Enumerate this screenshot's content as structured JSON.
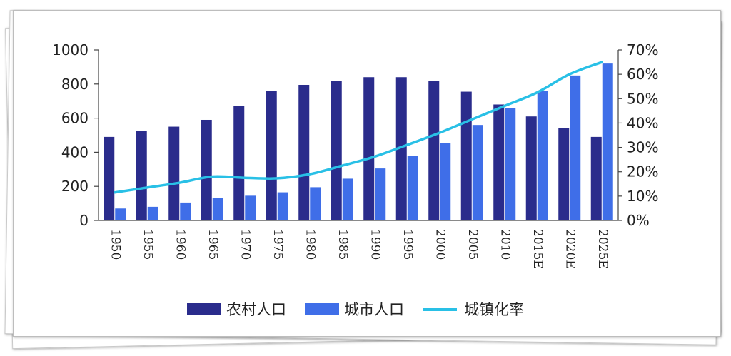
{
  "chart_data": {
    "type": "bar+line",
    "categories": [
      "1950",
      "1955",
      "1960",
      "1965",
      "1970",
      "1975",
      "1980",
      "1985",
      "1990",
      "1995",
      "2000",
      "2005",
      "2010",
      "2015E",
      "2020E",
      "2025E"
    ],
    "series": [
      {
        "name": "农村人口",
        "kind": "bar",
        "axis": "left",
        "color": "#2a2c8c",
        "values": [
          490,
          525,
          550,
          590,
          670,
          760,
          795,
          820,
          840,
          840,
          820,
          755,
          680,
          610,
          540,
          490
        ]
      },
      {
        "name": "城市人口",
        "kind": "bar",
        "axis": "left",
        "color": "#3f6ee8",
        "values": [
          70,
          80,
          105,
          130,
          145,
          165,
          195,
          245,
          305,
          380,
          455,
          560,
          660,
          760,
          850,
          920
        ]
      },
      {
        "name": "城镇化率",
        "kind": "line",
        "axis": "right",
        "color": "#29c0e6",
        "values": [
          0.115,
          0.135,
          0.155,
          0.18,
          0.175,
          0.173,
          0.19,
          0.225,
          0.262,
          0.31,
          0.36,
          0.415,
          0.47,
          0.525,
          0.6,
          0.65
        ]
      }
    ],
    "y_left": {
      "min": 0,
      "max": 1000,
      "ticks": [
        "0",
        "200",
        "400",
        "600",
        "800",
        "1000"
      ]
    },
    "y_right": {
      "min": 0,
      "max": 0.7,
      "ticks": [
        "0%",
        "10%",
        "20%",
        "30%",
        "40%",
        "50%",
        "60%",
        "70%"
      ]
    },
    "legend_position": "bottom",
    "grid": false
  }
}
